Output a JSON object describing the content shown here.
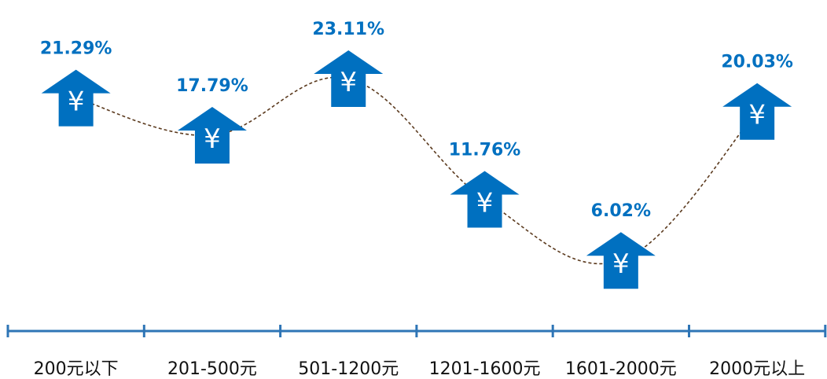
{
  "chart_data": {
    "type": "line",
    "categories": [
      "200元以下",
      "201-500元",
      "501-1200元",
      "1201-1600元",
      "1601-2000元",
      "2000元以上"
    ],
    "values": [
      21.29,
      17.79,
      23.11,
      11.76,
      6.02,
      20.03
    ],
    "value_labels": [
      "21.29%",
      "17.79%",
      "23.11%",
      "11.76%",
      "6.02%",
      "20.03%"
    ],
    "unit": "%",
    "ylim": [
      0,
      25
    ],
    "grid": false,
    "legend": "none",
    "marker_icon": "yen-up-arrow-icon",
    "marker_glyph": "¥",
    "line_style": "dashed-smooth",
    "colors": {
      "marker": "#0070C0",
      "label": "#0070C0",
      "line": "#5B3A1E",
      "axis": "#2E75B6",
      "marker_glyph": "#FFFFFF"
    }
  }
}
